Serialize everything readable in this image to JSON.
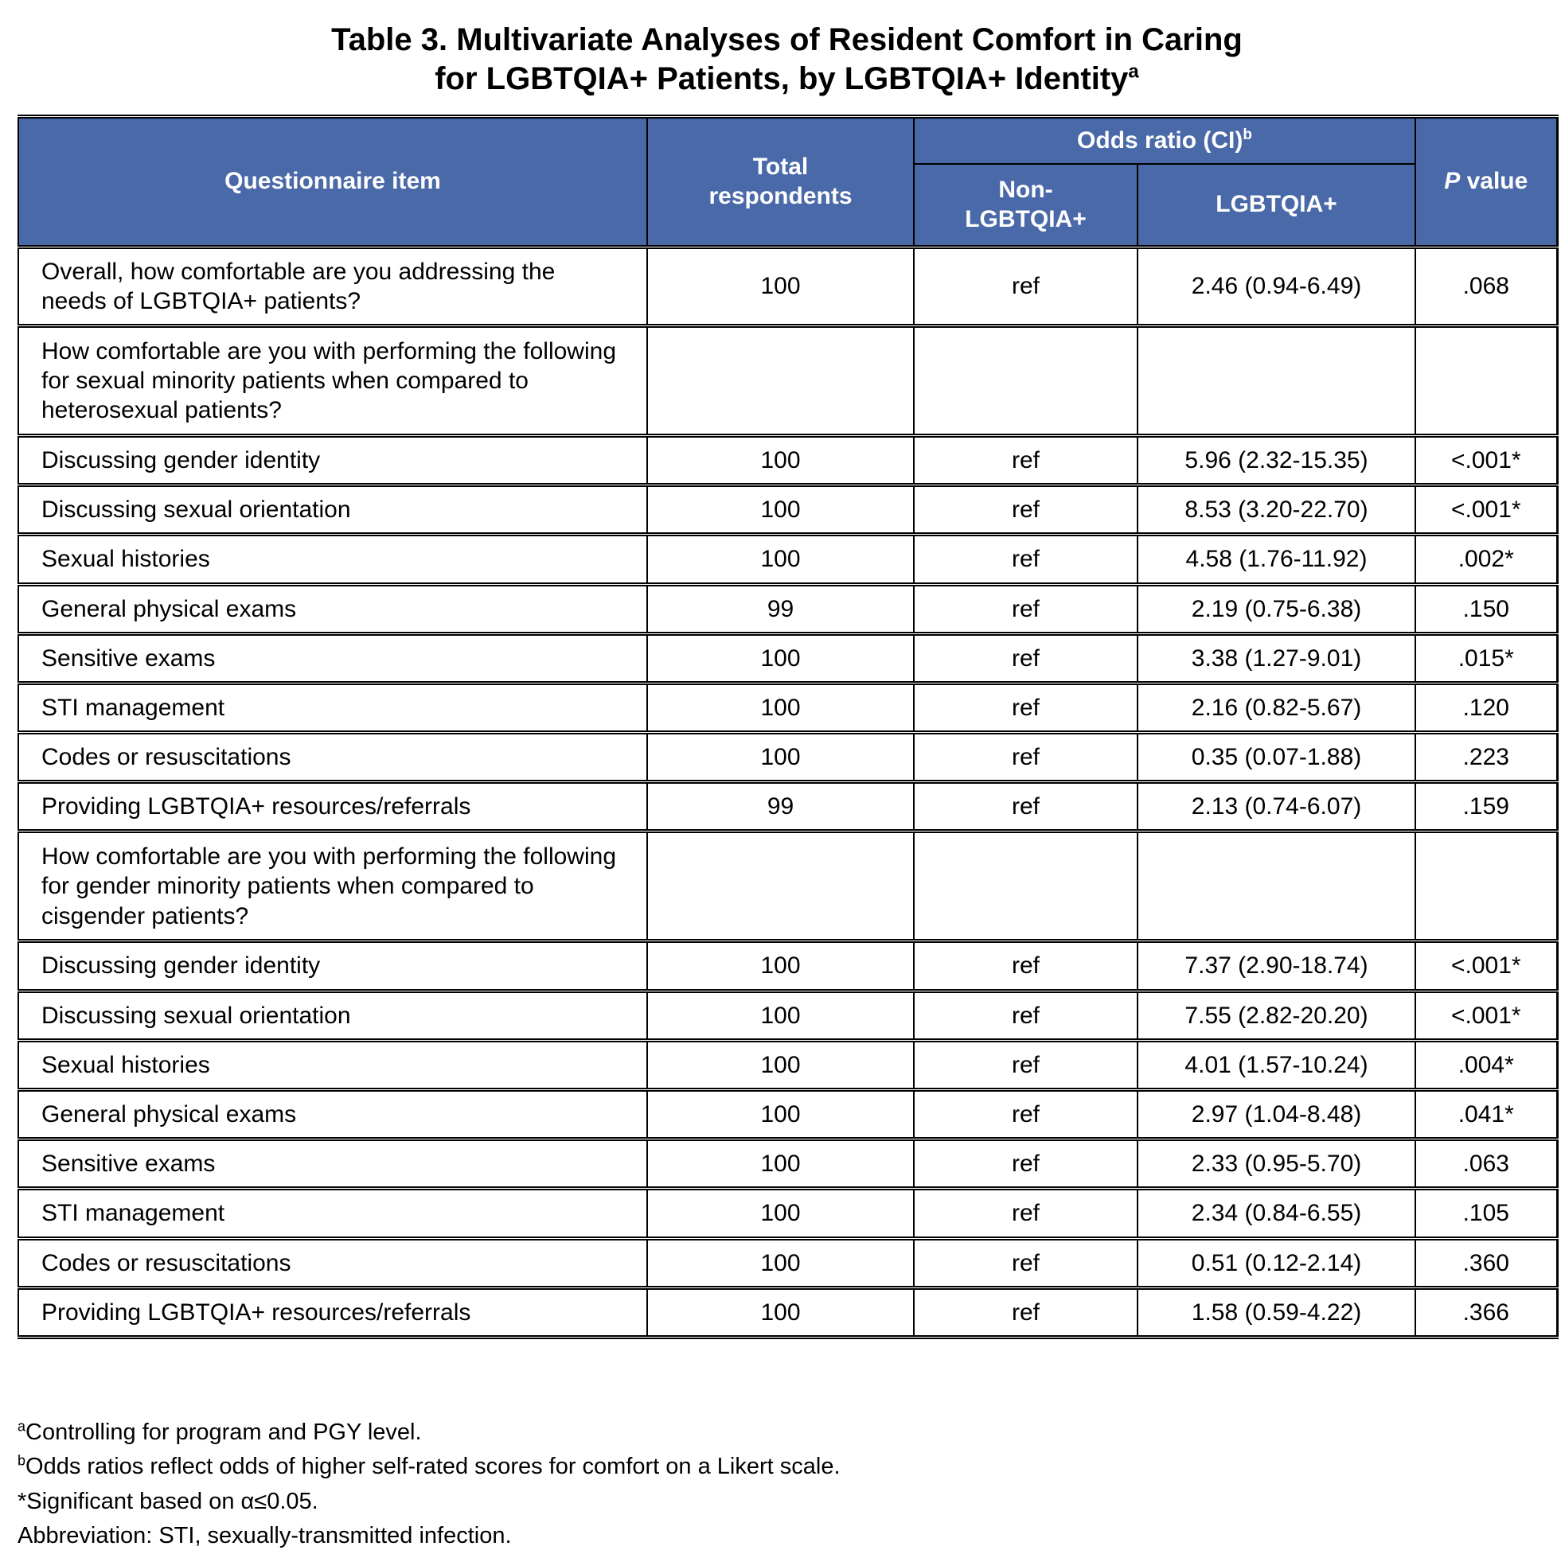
{
  "title": {
    "line1": "Table 3. Multivariate Analyses of Resident Comfort in Caring",
    "line2": "for LGBTQIA+ Patients, by LGBTQIA+ Identity",
    "line2_sup": "a"
  },
  "colors": {
    "header_bg": "#4A69A8",
    "header_text": "#FFFFFF",
    "border": "#000000",
    "body_text": "#000000"
  },
  "table": {
    "headers": {
      "questionnaire_item": "Questionnaire item",
      "total_respondents": "Total respondents",
      "odds_ratio": "Odds ratio (CI)",
      "odds_ratio_sup": "b",
      "non_lgbtqia": "Non-LGBTQIA+",
      "lgbtqia": "LGBTQIA+",
      "p_italic": "P",
      "p_rest": " value"
    },
    "rows": [
      {
        "type": "data",
        "item": "Overall, how comfortable are you addressing the needs of LGBTQIA+ patients?",
        "total": "100",
        "non_lgbtqia": "ref",
        "lgbtqia": "2.46 (0.94-6.49)",
        "p": ".068"
      },
      {
        "type": "section",
        "item": "How comfortable are you with performing the following for sexual minority patients when compared to heterosexual patients?",
        "total": "",
        "non_lgbtqia": "",
        "lgbtqia": "",
        "p": ""
      },
      {
        "type": "data",
        "item": "Discussing gender identity",
        "total": "100",
        "non_lgbtqia": "ref",
        "lgbtqia": "5.96 (2.32-15.35)",
        "p": "<.001*"
      },
      {
        "type": "data",
        "item": "Discussing sexual orientation",
        "total": "100",
        "non_lgbtqia": "ref",
        "lgbtqia": "8.53 (3.20-22.70)",
        "p": "<.001*"
      },
      {
        "type": "data",
        "item": "Sexual histories",
        "total": "100",
        "non_lgbtqia": "ref",
        "lgbtqia": "4.58 (1.76-11.92)",
        "p": ".002*"
      },
      {
        "type": "data",
        "item": "General physical exams",
        "total": "99",
        "non_lgbtqia": "ref",
        "lgbtqia": "2.19 (0.75-6.38)",
        "p": ".150"
      },
      {
        "type": "data",
        "item": "Sensitive exams",
        "total": "100",
        "non_lgbtqia": "ref",
        "lgbtqia": "3.38 (1.27-9.01)",
        "p": ".015*"
      },
      {
        "type": "data",
        "item": "STI management",
        "total": "100",
        "non_lgbtqia": "ref",
        "lgbtqia": "2.16 (0.82-5.67)",
        "p": ".120"
      },
      {
        "type": "data",
        "item": "Codes or resuscitations",
        "total": "100",
        "non_lgbtqia": "ref",
        "lgbtqia": "0.35 (0.07-1.88)",
        "p": ".223"
      },
      {
        "type": "data",
        "item": "Providing LGBTQIA+ resources/referrals",
        "total": "99",
        "non_lgbtqia": "ref",
        "lgbtqia": "2.13 (0.74-6.07)",
        "p": ".159"
      },
      {
        "type": "section",
        "item": "How comfortable are you with performing the following for gender minority patients when compared to cisgender patients?",
        "total": "",
        "non_lgbtqia": "",
        "lgbtqia": "",
        "p": ""
      },
      {
        "type": "data",
        "item": "Discussing gender identity",
        "total": "100",
        "non_lgbtqia": "ref",
        "lgbtqia": "7.37 (2.90-18.74)",
        "p": "<.001*"
      },
      {
        "type": "data",
        "item": "Discussing sexual orientation",
        "total": "100",
        "non_lgbtqia": "ref",
        "lgbtqia": "7.55 (2.82-20.20)",
        "p": "<.001*"
      },
      {
        "type": "data",
        "item": "Sexual histories",
        "total": "100",
        "non_lgbtqia": "ref",
        "lgbtqia": "4.01 (1.57-10.24)",
        "p": ".004*"
      },
      {
        "type": "data",
        "item": "General physical exams",
        "total": "100",
        "non_lgbtqia": "ref",
        "lgbtqia": "2.97 (1.04-8.48)",
        "p": ".041*"
      },
      {
        "type": "data",
        "item": "Sensitive exams",
        "total": "100",
        "non_lgbtqia": "ref",
        "lgbtqia": "2.33 (0.95-5.70)",
        "p": ".063"
      },
      {
        "type": "data",
        "item": "STI management",
        "total": "100",
        "non_lgbtqia": "ref",
        "lgbtqia": "2.34 (0.84-6.55)",
        "p": ".105"
      },
      {
        "type": "data",
        "item": "Codes or resuscitations",
        "total": "100",
        "non_lgbtqia": "ref",
        "lgbtqia": "0.51 (0.12-2.14)",
        "p": ".360"
      },
      {
        "type": "data",
        "item": "Providing LGBTQIA+ resources/referrals",
        "total": "100",
        "non_lgbtqia": "ref",
        "lgbtqia": "1.58 (0.59-4.22)",
        "p": ".366"
      }
    ]
  },
  "footnotes": [
    {
      "sup": "a",
      "text": "Controlling for program and PGY level."
    },
    {
      "sup": "b",
      "text": "Odds ratios reflect odds of higher self-rated scores for comfort on a Likert scale."
    },
    {
      "sup": "",
      "text": "*Significant based on α≤0.05."
    },
    {
      "sup": "",
      "text": "Abbreviation: STI, sexually-transmitted infection."
    }
  ]
}
